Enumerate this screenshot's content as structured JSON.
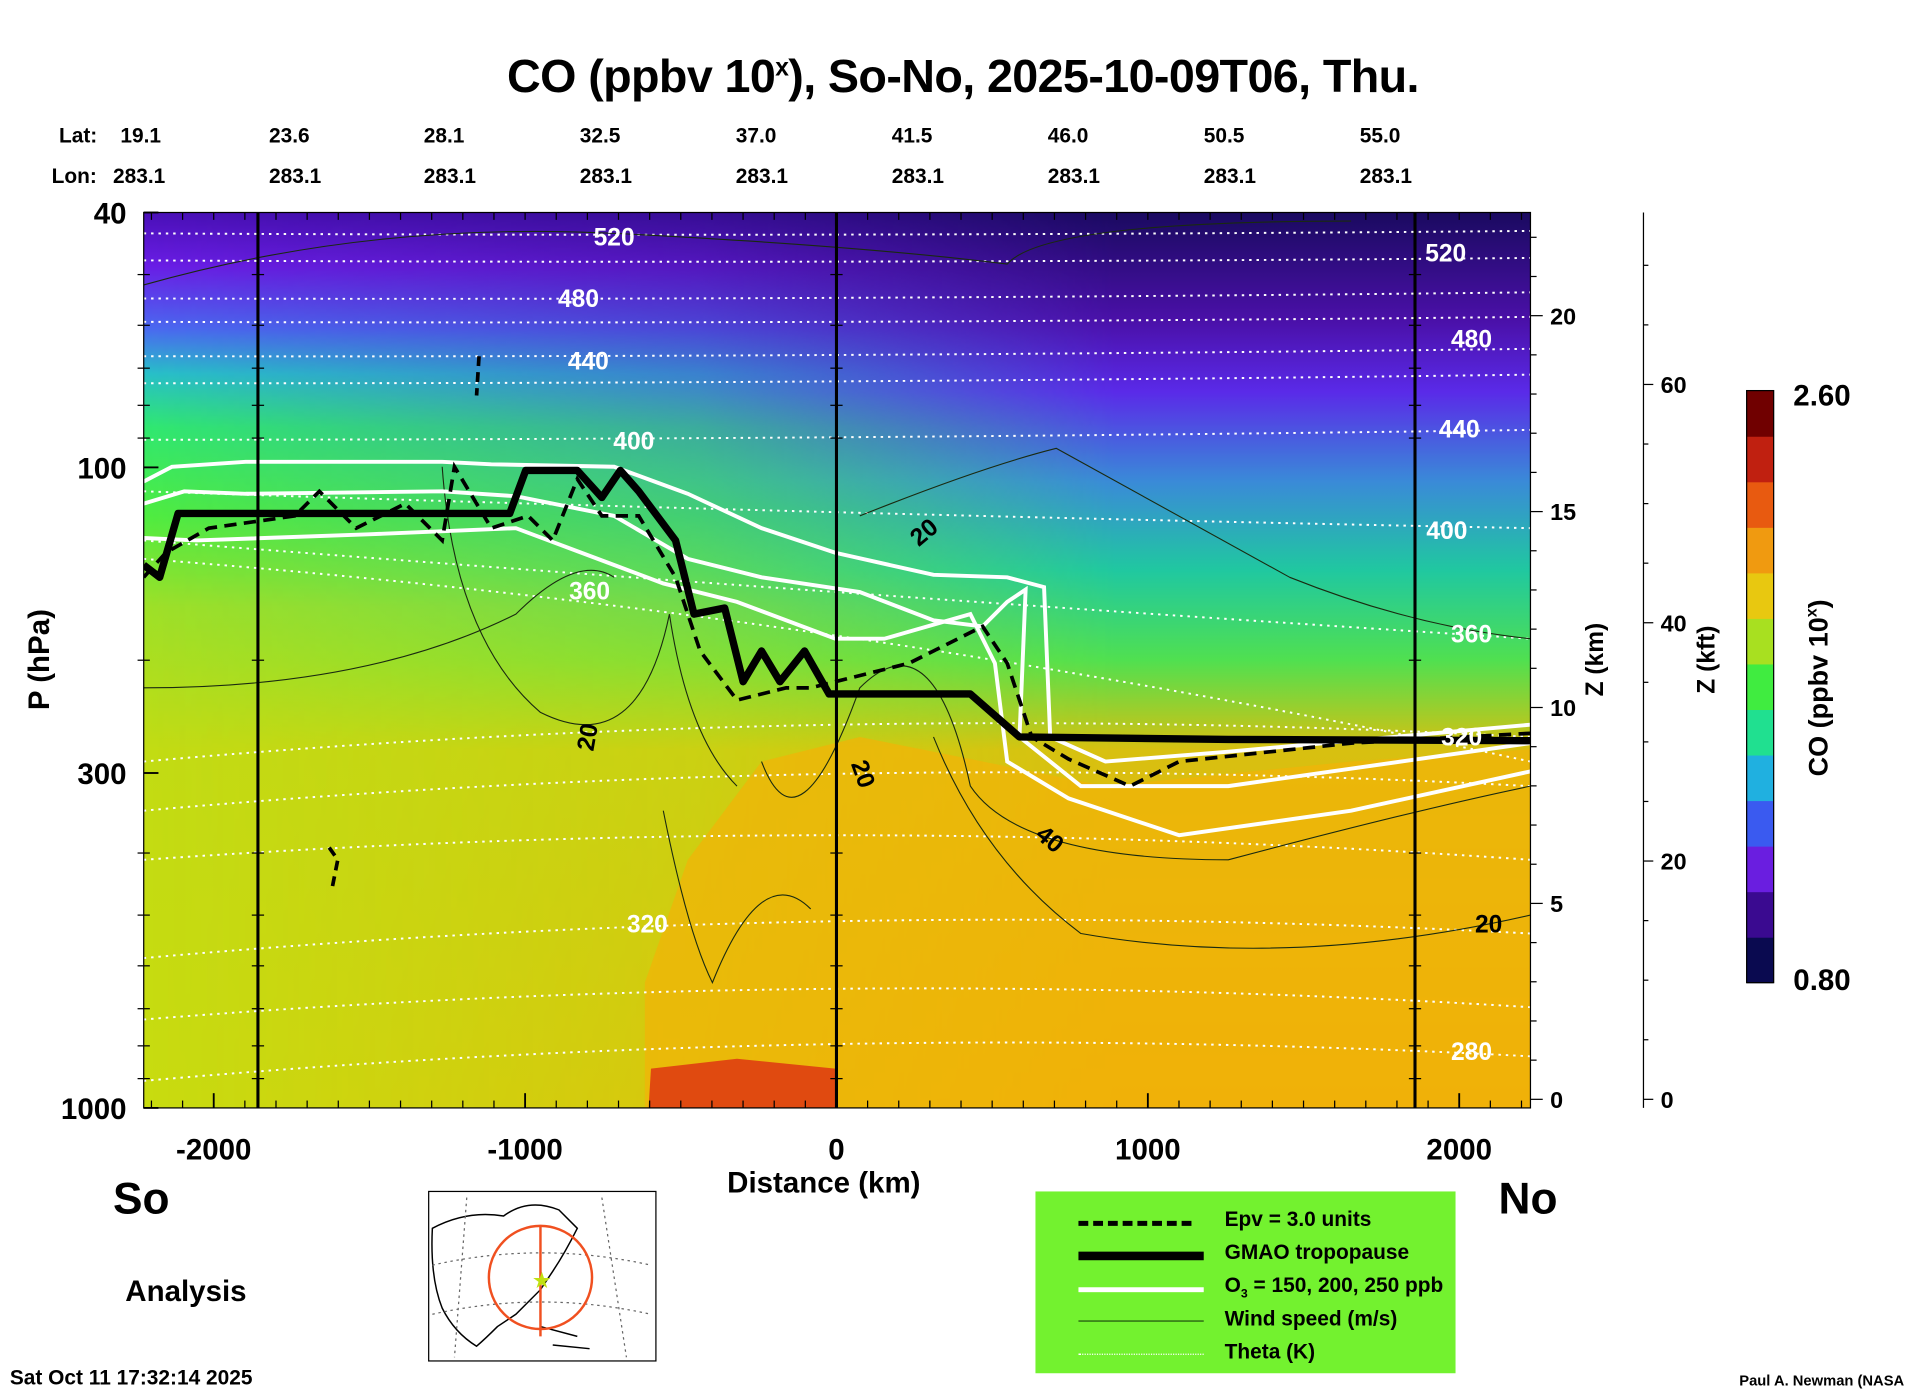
{
  "chart_data": {
    "type": "heatmap",
    "title": "CO (ppbv 10^x), So-No, 2025-10-09T06, Thu.",
    "title_parts": {
      "main": "CO (ppbv 10",
      "sup": "x",
      "rest": "), So-No, 2025-10-09T06, Thu."
    },
    "xlabel": "Distance (km)",
    "ylabel": "P (hPa)",
    "xlim": [
      -2230,
      2230
    ],
    "ylim": [
      1000,
      40
    ],
    "x_ticks": [
      -2000,
      -1000,
      0,
      1000,
      2000
    ],
    "y_ticks": [
      40,
      100,
      300,
      1000
    ],
    "z_km_label": "Z (km)",
    "z_km_ticks": [
      0,
      5,
      10,
      15,
      20
    ],
    "z_kft_label": "Z (kft)",
    "z_kft_ticks": [
      0,
      20,
      40,
      60
    ],
    "lat_label": "Lat:",
    "lon_label": "Lon:",
    "lat": [
      "19.1",
      "23.6",
      "28.1",
      "32.5",
      "37.0",
      "41.5",
      "46.0",
      "50.5",
      "55.0"
    ],
    "lon": [
      "283.1",
      "283.1",
      "283.1",
      "283.1",
      "283.1",
      "283.1",
      "283.1",
      "283.1",
      "283.1"
    ],
    "colorbar": {
      "label": "CO (ppbv 10^x)",
      "label_main": "CO (ppbv 10",
      "label_sup": "x",
      "label_end": ")",
      "min": "0.80",
      "max": "2.60",
      "colors": [
        "#0a0a50",
        "#3a0a90",
        "#6a1ee0",
        "#3a5af0",
        "#20b0e0",
        "#20e090",
        "#40ec40",
        "#a8e020",
        "#e8c810",
        "#f09a10",
        "#e85a10",
        "#c02010",
        "#700000"
      ]
    },
    "theta_labels": [
      "520",
      "480",
      "440",
      "400",
      "360",
      "320",
      "520",
      "480",
      "440",
      "400",
      "360",
      "320",
      "280"
    ],
    "wind_labels": [
      "20",
      "20",
      "20",
      "40",
      "20"
    ],
    "left_label": "So",
    "right_label": "No",
    "mode_label": "Analysis",
    "legend": [
      {
        "label": "Epv = 3.0 units",
        "style": "dashed"
      },
      {
        "label": "GMAO tropopause",
        "style": "thick"
      },
      {
        "label": "O3 = 150, 200, 250 ppb",
        "label_a": "O",
        "label_sub": "3",
        "label_b": " = 150, 200, 250 ppb",
        "style": "white"
      },
      {
        "label": "Wind speed (m/s)",
        "style": "thin"
      },
      {
        "label": "Theta (K)",
        "style": "dotted"
      }
    ]
  },
  "footer": {
    "timestamp": "Sat Oct 11 17:32:14 2025",
    "credit": "Paul A. Newman (NASA"
  }
}
